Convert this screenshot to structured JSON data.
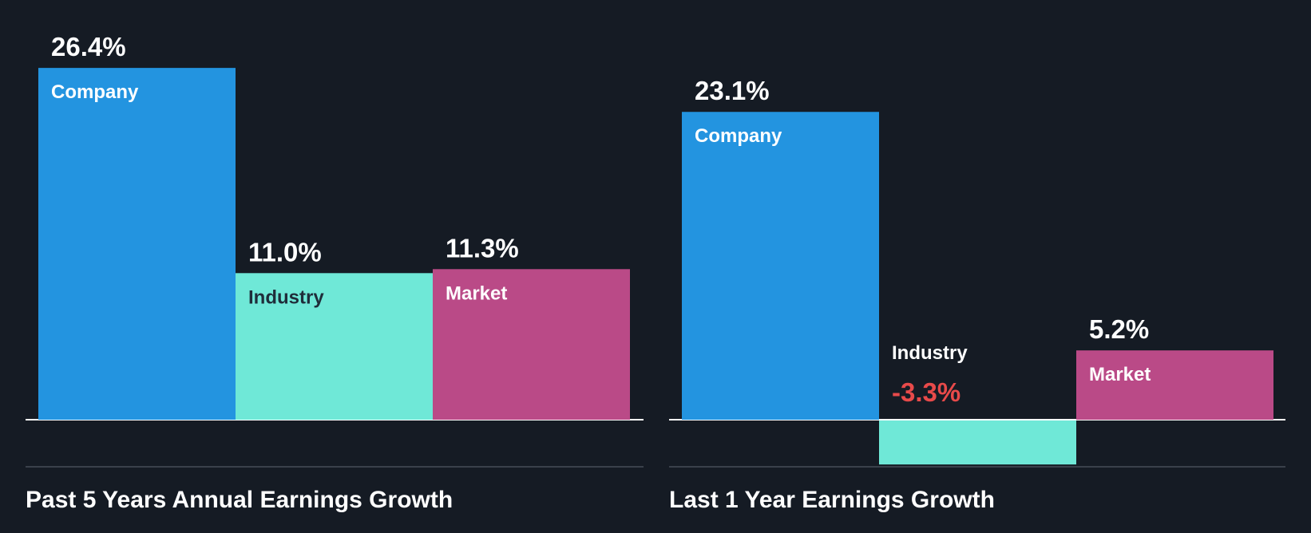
{
  "background": "#151b24",
  "colors": {
    "company": "#2394e0",
    "industry": "#6fe8d7",
    "market": "#ba4a87",
    "value_text": "#ffffff",
    "negative_text": "#e84a4a",
    "label_on_light": "#1f2d3a",
    "label_on_dark": "#ffffff",
    "baseline": "#ffffff",
    "separator": "#3a414b"
  },
  "chart_data": [
    {
      "type": "bar",
      "title": "Past 5 Years Annual Earnings Growth",
      "categories": [
        "Company",
        "Industry",
        "Market"
      ],
      "values": [
        26.4,
        11.0,
        11.3
      ],
      "value_labels": [
        "26.4%",
        "11.0%",
        "11.3%"
      ],
      "ylim": [
        -3.5,
        26.4
      ],
      "xlabel": "",
      "ylabel": ""
    },
    {
      "type": "bar",
      "title": "Last 1 Year Earnings Growth",
      "categories": [
        "Company",
        "Industry",
        "Market"
      ],
      "values": [
        23.1,
        -3.3,
        5.2
      ],
      "value_labels": [
        "23.1%",
        "-3.3%",
        "5.2%"
      ],
      "ylim": [
        -3.5,
        26.4
      ],
      "xlabel": "",
      "ylabel": ""
    }
  ]
}
